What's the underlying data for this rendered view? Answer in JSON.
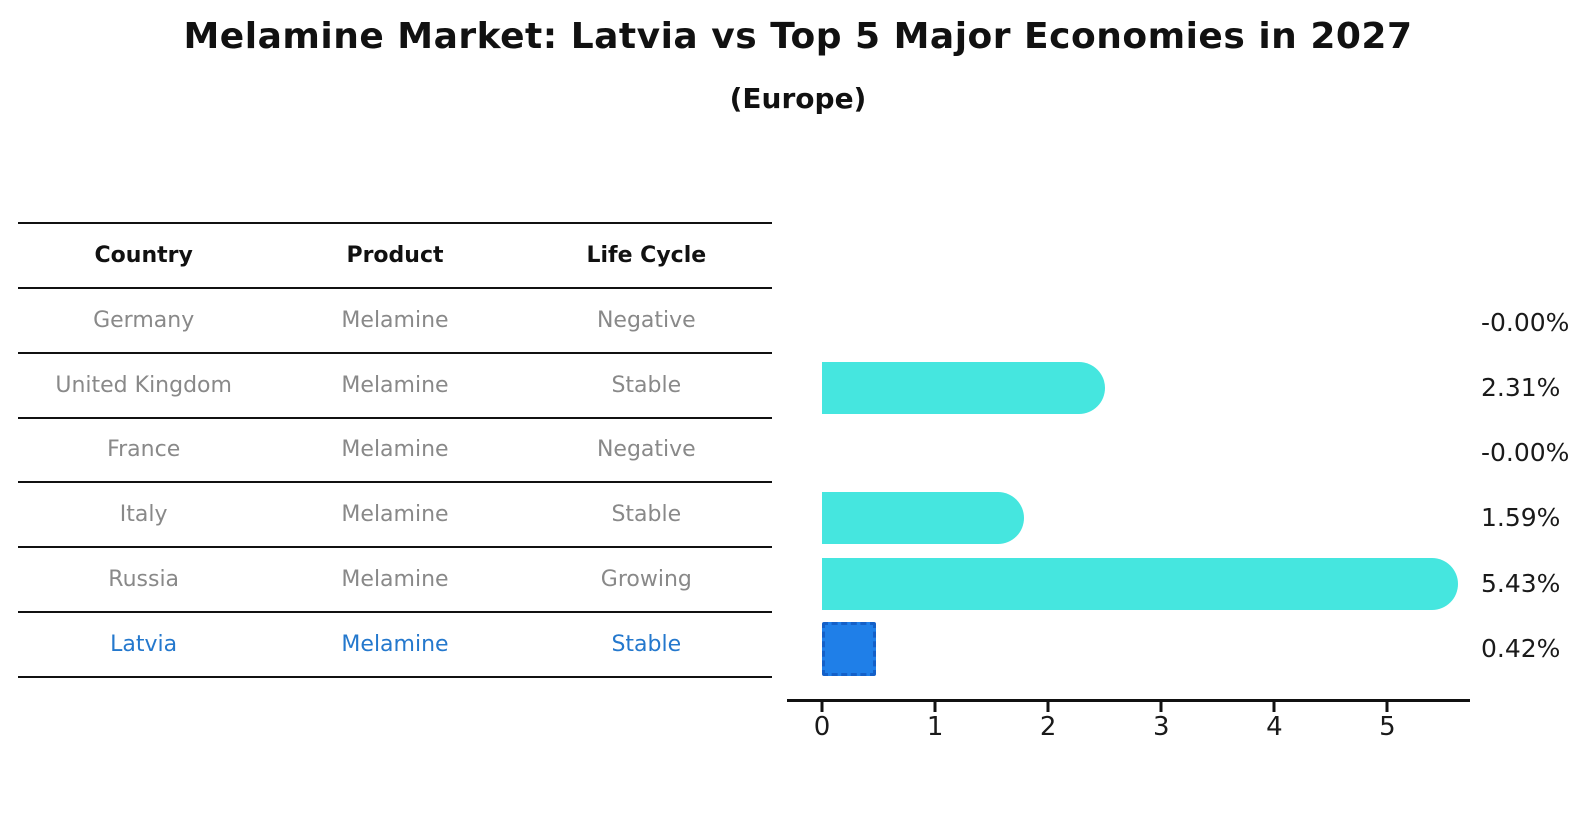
{
  "title": "Melamine Market: Latvia vs Top 5 Major Economies in 2027",
  "subtitle": "(Europe)",
  "colors": {
    "bar_default": "#45e6df",
    "bar_highlight_fill": "#1f7fe8",
    "bar_highlight_border": "#1460c8",
    "highlight_text": "#2478cd",
    "table_text": "#898989",
    "header_text": "#111111",
    "axis_text": "#1a1a1a"
  },
  "table": {
    "headers": [
      "Country",
      "Product",
      "Life Cycle"
    ],
    "rows": [
      {
        "country": "Germany",
        "product": "Melamine",
        "life_cycle": "Negative"
      },
      {
        "country": "United Kingdom",
        "product": "Melamine",
        "life_cycle": "Stable"
      },
      {
        "country": "France",
        "product": "Melamine",
        "life_cycle": "Negative"
      },
      {
        "country": "Italy",
        "product": "Melamine",
        "life_cycle": "Stable"
      },
      {
        "country": "Russia",
        "product": "Melamine",
        "life_cycle": "Growing"
      },
      {
        "country": "Latvia",
        "product": "Melamine",
        "life_cycle": "Stable"
      }
    ],
    "highlight_row": "Latvia"
  },
  "chart_data": {
    "type": "bar",
    "orientation": "horizontal",
    "title": "Melamine Market: Latvia vs Top 5 Major Economies in 2027 (Europe)",
    "categories": [
      "Germany",
      "United Kingdom",
      "France",
      "Italy",
      "Russia",
      "Latvia"
    ],
    "values": [
      -0.0,
      2.31,
      -0.0,
      1.59,
      5.43,
      0.42
    ],
    "labels": [
      "-0.00%",
      "2.31%",
      "-0.00%",
      "1.59%",
      "5.43%",
      "0.42%"
    ],
    "unit": "%",
    "highlight_index": 5,
    "xticks": [
      0,
      1,
      2,
      3,
      4,
      5
    ],
    "xlim": [
      -0.31,
      5.73
    ],
    "grid": false,
    "legend": false
  }
}
